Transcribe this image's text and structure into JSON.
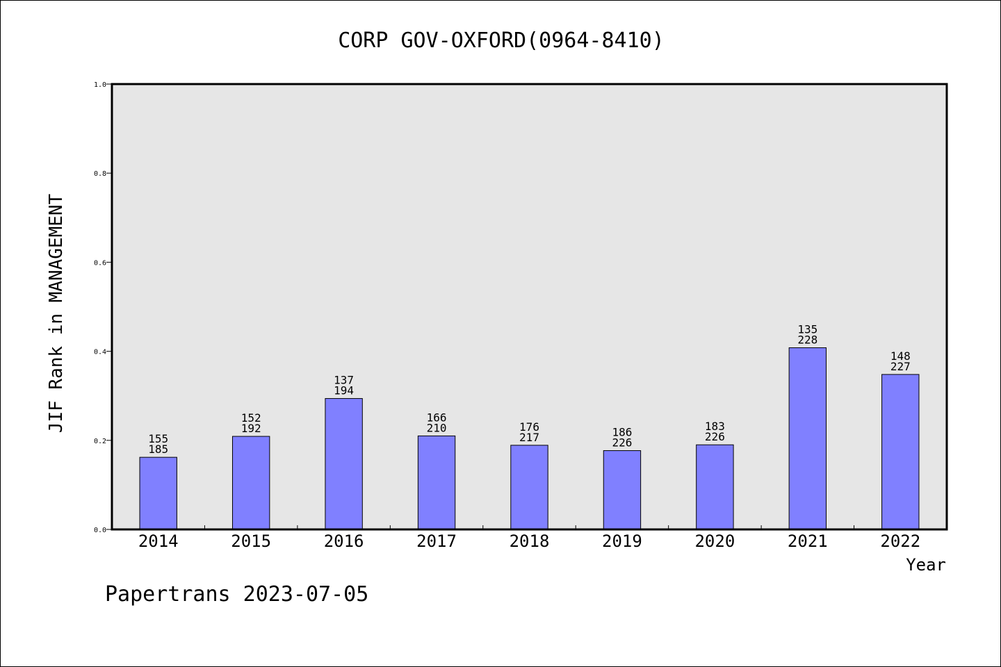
{
  "chart_data": {
    "type": "bar",
    "title": "CORP GOV-OXFORD(0964-8410)",
    "xlabel": "Year",
    "ylabel": "JIF Rank in MANAGEMENT",
    "ylim": [
      0.0,
      1.0
    ],
    "yticks": [
      "0.0",
      "0.2",
      "0.4",
      "0.6",
      "0.8",
      "1.0"
    ],
    "ytick_values": [
      0.0,
      0.2,
      0.4,
      0.6,
      0.8,
      1.0
    ],
    "categories": [
      "2014",
      "2015",
      "2016",
      "2017",
      "2018",
      "2019",
      "2020",
      "2021",
      "2022"
    ],
    "values": [
      0.162,
      0.209,
      0.294,
      0.21,
      0.189,
      0.177,
      0.19,
      0.408,
      0.348
    ],
    "rank": [
      "155",
      "152",
      "137",
      "166",
      "176",
      "186",
      "183",
      "135",
      "148"
    ],
    "total": [
      "185",
      "192",
      "194",
      "210",
      "217",
      "226",
      "226",
      "228",
      "227"
    ],
    "grid": false,
    "bar_color": "#8080ff",
    "plot_background": "#e6e6e6"
  },
  "footer": {
    "source": "Papertrans 2023-07-05"
  }
}
